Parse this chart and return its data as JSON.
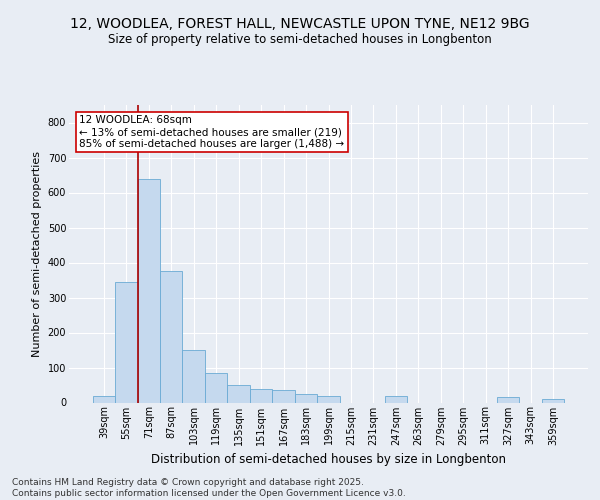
{
  "title_line1": "12, WOODLEA, FOREST HALL, NEWCASTLE UPON TYNE, NE12 9BG",
  "title_line2": "Size of property relative to semi-detached houses in Longbenton",
  "xlabel": "Distribution of semi-detached houses by size in Longbenton",
  "ylabel": "Number of semi-detached properties",
  "categories": [
    "39sqm",
    "55sqm",
    "71sqm",
    "87sqm",
    "103sqm",
    "119sqm",
    "135sqm",
    "151sqm",
    "167sqm",
    "183sqm",
    "199sqm",
    "215sqm",
    "231sqm",
    "247sqm",
    "263sqm",
    "279sqm",
    "295sqm",
    "311sqm",
    "327sqm",
    "343sqm",
    "359sqm"
  ],
  "values": [
    20,
    345,
    640,
    375,
    150,
    85,
    50,
    40,
    35,
    25,
    20,
    0,
    0,
    20,
    0,
    0,
    0,
    0,
    15,
    0,
    10
  ],
  "bar_color": "#c5d9ee",
  "bar_edge_color": "#6aaad4",
  "vline_color": "#aa0000",
  "annotation_text": "12 WOODLEA: 68sqm\n← 13% of semi-detached houses are smaller (219)\n85% of semi-detached houses are larger (1,488) →",
  "annotation_box_facecolor": "#ffffff",
  "annotation_box_edgecolor": "#cc0000",
  "ylim": [
    0,
    850
  ],
  "yticks": [
    0,
    100,
    200,
    300,
    400,
    500,
    600,
    700,
    800
  ],
  "background_color": "#e8edf4",
  "plot_bg_color": "#e8edf4",
  "grid_color": "#ffffff",
  "footer_text": "Contains HM Land Registry data © Crown copyright and database right 2025.\nContains public sector information licensed under the Open Government Licence v3.0.",
  "title_fontsize": 10,
  "subtitle_fontsize": 8.5,
  "tick_fontsize": 7,
  "ylabel_fontsize": 8,
  "xlabel_fontsize": 8.5,
  "footer_fontsize": 6.5,
  "annotation_fontsize": 7.5
}
